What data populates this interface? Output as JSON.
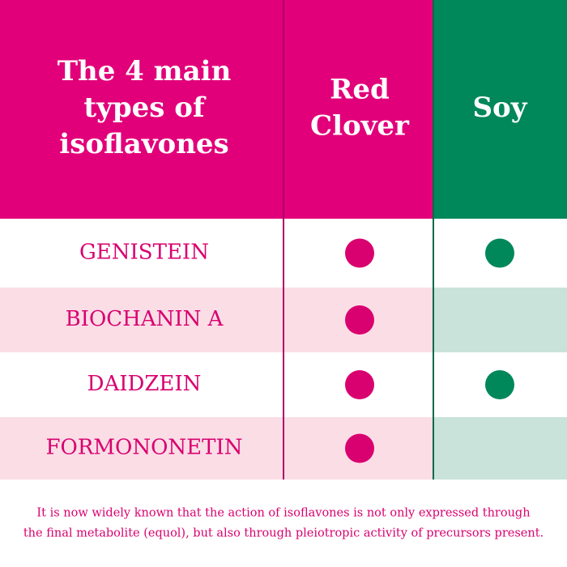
{
  "header": {
    "title_lines": [
      "The 4 main",
      "types of",
      "isoflavones"
    ],
    "columns": [
      {
        "name_lines": [
          "Red",
          "Clover"
        ]
      },
      {
        "name_lines": [
          "Soy"
        ]
      }
    ]
  },
  "table": {
    "rows": [
      {
        "name": "GENISTEIN",
        "red_clover": true,
        "soy": true
      },
      {
        "name": "BIOCHANIN A",
        "red_clover": true,
        "soy": false
      },
      {
        "name": "DAIDZEIN",
        "red_clover": true,
        "soy": true
      },
      {
        "name": "FORMONONETIN",
        "red_clover": true,
        "soy": false
      }
    ]
  },
  "footer": {
    "lines": [
      "It is now widely known that the action of isoflavones is not only expressed through",
      "the final metabolite (equol), but also through pleiotropic activity of precursors present."
    ]
  }
}
